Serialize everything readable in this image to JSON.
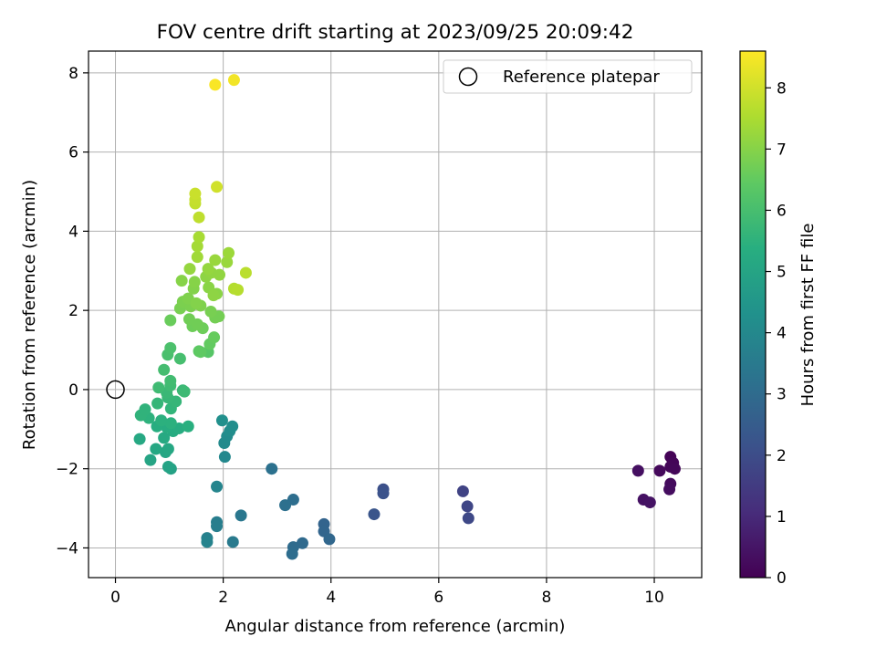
{
  "chart_data": {
    "type": "scatter",
    "title": "FOV centre drift starting at 2023/09/25 20:09:42",
    "xlabel": "Angular distance from reference (arcmin)",
    "ylabel": "Rotation from reference (arcmin)",
    "xlim": [
      -0.5,
      10.88
    ],
    "ylim": [
      -4.75,
      8.55
    ],
    "xticks": [
      0,
      2,
      4,
      6,
      8,
      10
    ],
    "yticks": [
      -4,
      -2,
      0,
      2,
      4,
      6,
      8
    ],
    "grid": true,
    "legend": {
      "position": "upper right",
      "entries": [
        {
          "label": "Reference platepar",
          "marker": "open-circle"
        }
      ]
    },
    "reference_point": {
      "x": 0,
      "y": 0
    },
    "colorbar": {
      "label": "Hours from first FF file",
      "colormap": "viridis",
      "range": [
        0,
        8.6
      ],
      "ticks": [
        0,
        1,
        2,
        3,
        4,
        5,
        6,
        7,
        8
      ]
    },
    "points": [
      {
        "x": 10.3,
        "y": -1.7,
        "c": 0.05
      },
      {
        "x": 10.35,
        "y": -1.85,
        "c": 0.1
      },
      {
        "x": 10.3,
        "y": -1.95,
        "c": 0.12
      },
      {
        "x": 10.38,
        "y": -2.0,
        "c": 0.15
      },
      {
        "x": 10.1,
        "y": -2.05,
        "c": 0.2
      },
      {
        "x": 10.3,
        "y": -2.38,
        "c": 0.25
      },
      {
        "x": 10.28,
        "y": -2.52,
        "c": 0.3
      },
      {
        "x": 9.7,
        "y": -2.05,
        "c": 0.35
      },
      {
        "x": 9.8,
        "y": -2.78,
        "c": 0.4
      },
      {
        "x": 9.92,
        "y": -2.85,
        "c": 0.45
      },
      {
        "x": 6.45,
        "y": -2.57,
        "c": 1.7
      },
      {
        "x": 6.53,
        "y": -2.95,
        "c": 1.8
      },
      {
        "x": 6.55,
        "y": -3.25,
        "c": 1.85
      },
      {
        "x": 4.97,
        "y": -2.52,
        "c": 2.1
      },
      {
        "x": 4.97,
        "y": -2.62,
        "c": 2.15
      },
      {
        "x": 4.8,
        "y": -3.15,
        "c": 2.25
      },
      {
        "x": 3.87,
        "y": -3.4,
        "c": 2.75
      },
      {
        "x": 3.87,
        "y": -3.58,
        "c": 2.8
      },
      {
        "x": 3.97,
        "y": -3.78,
        "c": 2.85
      },
      {
        "x": 3.47,
        "y": -3.88,
        "c": 2.95
      },
      {
        "x": 3.3,
        "y": -3.98,
        "c": 3.0
      },
      {
        "x": 3.28,
        "y": -4.15,
        "c": 3.05
      },
      {
        "x": 3.3,
        "y": -2.78,
        "c": 3.1
      },
      {
        "x": 3.15,
        "y": -2.92,
        "c": 3.15
      },
      {
        "x": 2.9,
        "y": -2.0,
        "c": 3.2
      },
      {
        "x": 2.33,
        "y": -3.18,
        "c": 3.4
      },
      {
        "x": 2.18,
        "y": -3.85,
        "c": 3.5
      },
      {
        "x": 1.88,
        "y": -3.35,
        "c": 3.6
      },
      {
        "x": 1.88,
        "y": -3.45,
        "c": 3.65
      },
      {
        "x": 1.7,
        "y": -3.75,
        "c": 3.75
      },
      {
        "x": 1.7,
        "y": -3.85,
        "c": 3.8
      },
      {
        "x": 1.88,
        "y": -2.45,
        "c": 3.9
      },
      {
        "x": 2.03,
        "y": -1.7,
        "c": 4.0
      },
      {
        "x": 2.02,
        "y": -1.35,
        "c": 4.05
      },
      {
        "x": 2.07,
        "y": -1.18,
        "c": 4.1
      },
      {
        "x": 2.12,
        "y": -1.05,
        "c": 4.15
      },
      {
        "x": 2.17,
        "y": -0.93,
        "c": 4.2
      },
      {
        "x": 1.98,
        "y": -0.78,
        "c": 4.25
      },
      {
        "x": 1.03,
        "y": -2.0,
        "c": 4.9
      },
      {
        "x": 0.98,
        "y": -1.95,
        "c": 4.95
      },
      {
        "x": 0.65,
        "y": -1.78,
        "c": 5.0
      },
      {
        "x": 0.93,
        "y": -1.58,
        "c": 5.05
      },
      {
        "x": 0.98,
        "y": -1.5,
        "c": 5.1
      },
      {
        "x": 0.75,
        "y": -1.5,
        "c": 5.1
      },
      {
        "x": 0.45,
        "y": -1.25,
        "c": 5.15
      },
      {
        "x": 0.9,
        "y": -1.22,
        "c": 5.2
      },
      {
        "x": 1.07,
        "y": -1.05,
        "c": 5.25
      },
      {
        "x": 1.18,
        "y": -0.98,
        "c": 5.3
      },
      {
        "x": 0.95,
        "y": -0.95,
        "c": 5.3
      },
      {
        "x": 0.77,
        "y": -0.93,
        "c": 5.35
      },
      {
        "x": 1.35,
        "y": -0.93,
        "c": 5.4
      },
      {
        "x": 1.03,
        "y": -0.85,
        "c": 5.45
      },
      {
        "x": 0.85,
        "y": -0.78,
        "c": 5.45
      },
      {
        "x": 0.62,
        "y": -0.72,
        "c": 5.5
      },
      {
        "x": 0.47,
        "y": -0.65,
        "c": 5.55
      },
      {
        "x": 0.55,
        "y": -0.5,
        "c": 5.55
      },
      {
        "x": 1.03,
        "y": -0.48,
        "c": 5.6
      },
      {
        "x": 0.78,
        "y": -0.35,
        "c": 5.65
      },
      {
        "x": 1.12,
        "y": -0.3,
        "c": 5.65
      },
      {
        "x": 0.97,
        "y": -0.2,
        "c": 5.7
      },
      {
        "x": 0.95,
        "y": -0.08,
        "c": 5.75
      },
      {
        "x": 1.25,
        "y": -0.02,
        "c": 5.75
      },
      {
        "x": 1.28,
        "y": -0.05,
        "c": 5.8
      },
      {
        "x": 0.8,
        "y": 0.05,
        "c": 5.85
      },
      {
        "x": 1.02,
        "y": 0.1,
        "c": 5.85
      },
      {
        "x": 1.02,
        "y": 0.22,
        "c": 5.9
      },
      {
        "x": 0.9,
        "y": 0.5,
        "c": 5.95
      },
      {
        "x": 1.2,
        "y": 0.78,
        "c": 6.0
      },
      {
        "x": 0.97,
        "y": 0.88,
        "c": 6.05
      },
      {
        "x": 1.02,
        "y": 1.05,
        "c": 6.1
      },
      {
        "x": 1.72,
        "y": 0.95,
        "c": 6.3
      },
      {
        "x": 1.55,
        "y": 0.97,
        "c": 6.4
      },
      {
        "x": 1.58,
        "y": 0.95,
        "c": 6.45
      },
      {
        "x": 1.75,
        "y": 1.15,
        "c": 6.5
      },
      {
        "x": 1.83,
        "y": 1.32,
        "c": 6.55
      },
      {
        "x": 1.02,
        "y": 1.75,
        "c": 6.6
      },
      {
        "x": 1.43,
        "y": 1.6,
        "c": 6.65
      },
      {
        "x": 1.62,
        "y": 1.55,
        "c": 6.65
      },
      {
        "x": 1.37,
        "y": 1.78,
        "c": 6.7
      },
      {
        "x": 1.52,
        "y": 1.65,
        "c": 6.7
      },
      {
        "x": 1.85,
        "y": 1.82,
        "c": 6.75
      },
      {
        "x": 1.92,
        "y": 1.85,
        "c": 6.75
      },
      {
        "x": 1.77,
        "y": 1.97,
        "c": 6.8
      },
      {
        "x": 1.2,
        "y": 2.05,
        "c": 6.8
      },
      {
        "x": 1.25,
        "y": 2.22,
        "c": 6.85
      },
      {
        "x": 1.4,
        "y": 2.1,
        "c": 6.85
      },
      {
        "x": 1.58,
        "y": 2.12,
        "c": 6.9
      },
      {
        "x": 1.35,
        "y": 2.3,
        "c": 6.9
      },
      {
        "x": 1.5,
        "y": 2.18,
        "c": 6.95
      },
      {
        "x": 1.45,
        "y": 2.55,
        "c": 6.95
      },
      {
        "x": 1.47,
        "y": 2.72,
        "c": 7.0
      },
      {
        "x": 1.23,
        "y": 2.75,
        "c": 7.0
      },
      {
        "x": 1.73,
        "y": 2.58,
        "c": 7.05
      },
      {
        "x": 1.88,
        "y": 2.42,
        "c": 7.05
      },
      {
        "x": 1.82,
        "y": 2.38,
        "c": 7.1
      },
      {
        "x": 1.68,
        "y": 2.85,
        "c": 7.1
      },
      {
        "x": 1.78,
        "y": 2.95,
        "c": 7.15
      },
      {
        "x": 1.93,
        "y": 2.9,
        "c": 7.15
      },
      {
        "x": 1.38,
        "y": 3.05,
        "c": 7.2
      },
      {
        "x": 1.72,
        "y": 3.05,
        "c": 7.2
      },
      {
        "x": 2.07,
        "y": 3.22,
        "c": 7.25
      },
      {
        "x": 1.85,
        "y": 3.27,
        "c": 7.25
      },
      {
        "x": 2.1,
        "y": 3.45,
        "c": 7.3
      },
      {
        "x": 1.52,
        "y": 3.35,
        "c": 7.35
      },
      {
        "x": 1.52,
        "y": 3.62,
        "c": 7.4
      },
      {
        "x": 1.55,
        "y": 3.85,
        "c": 7.45
      },
      {
        "x": 2.2,
        "y": 2.55,
        "c": 7.6
      },
      {
        "x": 2.27,
        "y": 2.52,
        "c": 7.65
      },
      {
        "x": 2.42,
        "y": 2.95,
        "c": 7.7
      },
      {
        "x": 1.55,
        "y": 4.35,
        "c": 7.75
      },
      {
        "x": 1.48,
        "y": 4.7,
        "c": 7.8
      },
      {
        "x": 1.48,
        "y": 4.8,
        "c": 7.85
      },
      {
        "x": 1.48,
        "y": 4.95,
        "c": 7.9
      },
      {
        "x": 1.88,
        "y": 5.12,
        "c": 8.0
      },
      {
        "x": 1.85,
        "y": 7.7,
        "c": 8.55
      },
      {
        "x": 2.2,
        "y": 7.82,
        "c": 8.45
      }
    ]
  }
}
